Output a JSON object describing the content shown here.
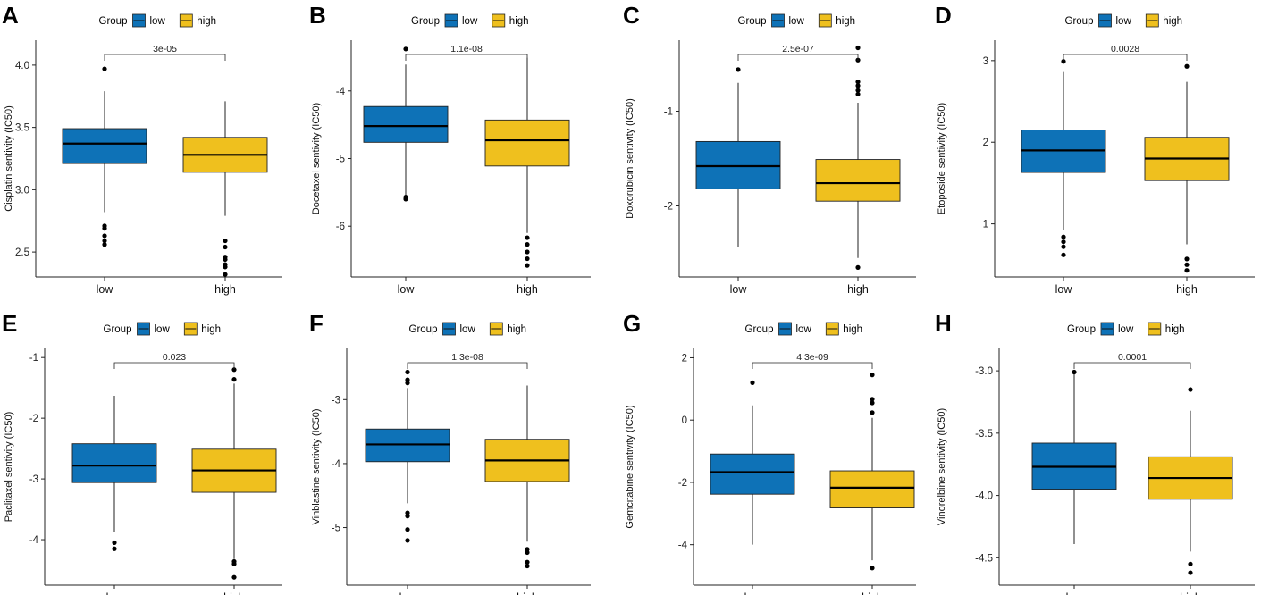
{
  "legend": {
    "title": "Group",
    "entries": [
      {
        "label": "low",
        "color": "#0E72B7"
      },
      {
        "label": "high",
        "color": "#EFC01E"
      }
    ]
  },
  "chart_data": [
    {
      "type": "box",
      "panel": "A",
      "ylabel": "Cisplatin sentivity (IC50)",
      "categories": [
        "low",
        "high"
      ],
      "ylim": [
        2.3,
        4.2
      ],
      "yticks": [
        2.5,
        3.0,
        3.5,
        4.0
      ],
      "ytick_labels": [
        "2.5",
        "3.0",
        "3.5",
        "4.0"
      ],
      "pvalue": "3e-05",
      "boxes": [
        {
          "group": "low",
          "lower_whisker": 2.82,
          "q1": 3.21,
          "median": 3.37,
          "q3": 3.49,
          "upper_whisker": 3.79,
          "outliers": [
            3.97,
            2.71,
            2.69,
            2.63,
            2.59,
            2.56
          ]
        },
        {
          "group": "high",
          "lower_whisker": 2.79,
          "q1": 3.14,
          "median": 3.28,
          "q3": 3.42,
          "upper_whisker": 3.71,
          "outliers": [
            2.59,
            2.54,
            2.46,
            2.44,
            2.4,
            2.38,
            2.32
          ]
        }
      ]
    },
    {
      "type": "box",
      "panel": "B",
      "ylabel": "Docetaxel sentivity (IC50)",
      "categories": [
        "low",
        "high"
      ],
      "ylim": [
        -6.75,
        -3.25
      ],
      "yticks": [
        -6,
        -5,
        -4
      ],
      "ytick_labels": [
        "-6",
        "-5",
        "-4"
      ],
      "pvalue": "1.1e-08",
      "boxes": [
        {
          "group": "low",
          "lower_whisker": -5.55,
          "q1": -4.76,
          "median": -4.52,
          "q3": -4.23,
          "upper_whisker": -3.61,
          "outliers": [
            -3.38,
            -5.57,
            -5.6
          ]
        },
        {
          "group": "high",
          "lower_whisker": -6.1,
          "q1": -5.11,
          "median": -4.73,
          "q3": -4.43,
          "upper_whisker": -3.51,
          "outliers": [
            -6.17,
            -6.27,
            -6.38,
            -6.48,
            -6.58
          ]
        }
      ]
    },
    {
      "type": "box",
      "panel": "C",
      "ylabel": "Doxorubicin sentivity (IC50)",
      "categories": [
        "low",
        "high"
      ],
      "ylim": [
        -2.75,
        -0.25
      ],
      "yticks": [
        -2,
        -1
      ],
      "ytick_labels": [
        "-2",
        "-1"
      ],
      "pvalue": "2.5e-07",
      "boxes": [
        {
          "group": "low",
          "lower_whisker": -2.43,
          "q1": -1.82,
          "median": -1.58,
          "q3": -1.32,
          "upper_whisker": -0.7,
          "outliers": [
            -0.56
          ]
        },
        {
          "group": "high",
          "lower_whisker": -2.55,
          "q1": -1.95,
          "median": -1.76,
          "q3": -1.51,
          "upper_whisker": -0.91,
          "outliers": [
            -0.33,
            -0.46,
            -0.69,
            -0.73,
            -0.78,
            -0.82,
            -2.65
          ]
        }
      ]
    },
    {
      "type": "box",
      "panel": "D",
      "ylabel": "Etoposide sentivity (IC50)",
      "categories": [
        "low",
        "high"
      ],
      "ylim": [
        0.35,
        3.25
      ],
      "yticks": [
        1,
        2,
        3
      ],
      "ytick_labels": [
        "1",
        "2",
        "3"
      ],
      "pvalue": "0.0028",
      "boxes": [
        {
          "group": "low",
          "lower_whisker": 0.93,
          "q1": 1.63,
          "median": 1.9,
          "q3": 2.15,
          "upper_whisker": 2.86,
          "outliers": [
            2.99,
            0.84,
            0.78,
            0.72,
            0.62
          ]
        },
        {
          "group": "high",
          "lower_whisker": 0.75,
          "q1": 1.53,
          "median": 1.8,
          "q3": 2.06,
          "upper_whisker": 2.74,
          "outliers": [
            2.93,
            0.57,
            0.5,
            0.43
          ]
        }
      ]
    },
    {
      "type": "box",
      "panel": "E",
      "ylabel": "Paclitaxel sentivity (IC50)",
      "categories": [
        "low",
        "high"
      ],
      "ylim": [
        -4.75,
        -0.85
      ],
      "yticks": [
        -4,
        -3,
        -2,
        -1
      ],
      "ytick_labels": [
        "-4",
        "-3",
        "-2",
        "-1"
      ],
      "pvalue": "0.023",
      "boxes": [
        {
          "group": "low",
          "lower_whisker": -3.88,
          "q1": -3.06,
          "median": -2.78,
          "q3": -2.42,
          "upper_whisker": -1.63,
          "outliers": [
            -4.05,
            -4.15
          ]
        },
        {
          "group": "high",
          "lower_whisker": -4.32,
          "q1": -3.22,
          "median": -2.86,
          "q3": -2.51,
          "upper_whisker": -1.43,
          "outliers": [
            -1.2,
            -1.36,
            -4.36,
            -4.4,
            -4.62
          ]
        }
      ]
    },
    {
      "type": "box",
      "panel": "F",
      "ylabel": "Vinblastine sentivity (IC50)",
      "categories": [
        "low",
        "high"
      ],
      "ylim": [
        -5.9,
        -2.2
      ],
      "yticks": [
        -5,
        -4,
        -3
      ],
      "ytick_labels": [
        "-5",
        "-4",
        "-3"
      ],
      "pvalue": "1.3e-08",
      "boxes": [
        {
          "group": "low",
          "lower_whisker": -4.62,
          "q1": -3.97,
          "median": -3.7,
          "q3": -3.46,
          "upper_whisker": -2.82,
          "outliers": [
            -2.57,
            -2.69,
            -2.74,
            -4.77,
            -4.82,
            -5.03,
            -5.2
          ]
        },
        {
          "group": "high",
          "lower_whisker": -5.22,
          "q1": -4.28,
          "median": -3.95,
          "q3": -3.62,
          "upper_whisker": -2.78,
          "outliers": [
            -5.34,
            -5.39,
            -5.54,
            -5.6
          ]
        }
      ]
    },
    {
      "type": "box",
      "panel": "G",
      "ylabel": "Gemcitabine sentivity (IC50)",
      "categories": [
        "low",
        "high"
      ],
      "ylim": [
        -5.3,
        2.3
      ],
      "yticks": [
        -4,
        -2,
        0,
        2
      ],
      "ytick_labels": [
        "-4",
        "-2",
        "0",
        "2"
      ],
      "pvalue": "4.3e-09",
      "boxes": [
        {
          "group": "low",
          "lower_whisker": -4.0,
          "q1": -2.38,
          "median": -1.67,
          "q3": -1.09,
          "upper_whisker": 0.47,
          "outliers": [
            1.2
          ]
        },
        {
          "group": "high",
          "lower_whisker": -4.5,
          "q1": -2.82,
          "median": -2.17,
          "q3": -1.63,
          "upper_whisker": 0.07,
          "outliers": [
            1.45,
            0.67,
            0.55,
            0.24,
            -4.75
          ]
        }
      ]
    },
    {
      "type": "box",
      "panel": "H",
      "ylabel": "Vinorelbine sentivity (IC50)",
      "categories": [
        "low",
        "high"
      ],
      "ylim": [
        -4.72,
        -2.82
      ],
      "yticks": [
        -4.5,
        -4.0,
        -3.5,
        -3.0
      ],
      "ytick_labels": [
        "-4.5",
        "-4.0",
        "-3.5",
        "-3.0"
      ],
      "pvalue": "0.0001",
      "boxes": [
        {
          "group": "low",
          "lower_whisker": -4.39,
          "q1": -3.95,
          "median": -3.77,
          "q3": -3.58,
          "upper_whisker": -3.01,
          "outliers": [
            -3.01
          ]
        },
        {
          "group": "high",
          "lower_whisker": -4.45,
          "q1": -4.03,
          "median": -3.86,
          "q3": -3.69,
          "upper_whisker": -3.32,
          "outliers": [
            -3.15,
            -4.55,
            -4.62
          ]
        }
      ]
    }
  ]
}
